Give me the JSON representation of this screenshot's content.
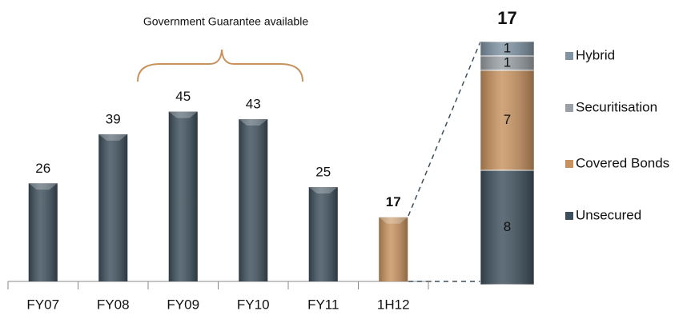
{
  "chart_data": [
    {
      "type": "bar",
      "annotation": "Government Guarantee available",
      "categories": [
        "FY07",
        "FY08",
        "FY09",
        "FY10",
        "FY11",
        "1H12"
      ],
      "values": [
        26,
        39,
        45,
        43,
        25,
        17
      ],
      "colors": [
        "#3d4f5c",
        "#3d4f5c",
        "#3d4f5c",
        "#3d4f5c",
        "#3d4f5c",
        "#c8925e"
      ],
      "ylim": [
        0,
        50
      ]
    },
    {
      "type": "stacked_bar",
      "total": 17,
      "series": [
        {
          "name": "Unsecured",
          "color": "#3d4f5c",
          "values": [
            8
          ]
        },
        {
          "name": "Covered Bonds",
          "color": "#c8925e",
          "values": [
            7
          ]
        },
        {
          "name": "Securitisation",
          "color": "#9aa0a6",
          "values": [
            1
          ]
        },
        {
          "name": "Hybrid",
          "color": "#7f93a3",
          "values": [
            1
          ]
        }
      ],
      "ylim": [
        0,
        17
      ]
    }
  ]
}
